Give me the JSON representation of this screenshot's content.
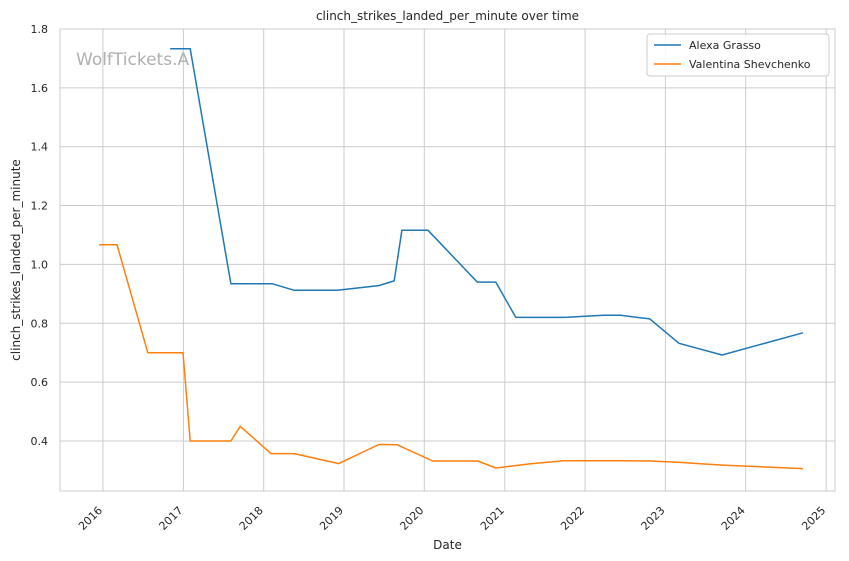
{
  "watermark": "WolfTickets.A",
  "colors": {
    "grid": "#cccccc",
    "axes_edge": "#cccccc",
    "text": "#262626",
    "background": "#ffffff"
  },
  "chart_data": {
    "type": "line",
    "title": "clinch_strikes_landed_per_minute over time",
    "xlabel": "Date",
    "ylabel": "clinch_strikes_landed_per_minute",
    "xlim": [
      "2015-06-20",
      "2025-02-10"
    ],
    "ylim": [
      0.23,
      1.8
    ],
    "x_ticks": [
      "2016",
      "2017",
      "2018",
      "2019",
      "2020",
      "2021",
      "2022",
      "2023",
      "2024",
      "2025"
    ],
    "y_ticks": [
      0.4,
      0.6,
      0.8,
      1.0,
      1.2,
      1.4,
      1.6,
      1.8
    ],
    "grid": true,
    "legend_position": "top-right",
    "series": [
      {
        "name": "Alexa Grasso",
        "color": "#1f77b4",
        "points": [
          [
            "2016-11-05",
            1.733
          ],
          [
            "2017-02-01",
            1.733
          ],
          [
            "2017-08-05",
            0.934
          ],
          [
            "2018-02-10",
            0.934
          ],
          [
            "2018-05-20",
            0.912
          ],
          [
            "2018-12-01",
            0.912
          ],
          [
            "2019-06-08",
            0.928
          ],
          [
            "2019-08-17",
            0.944
          ],
          [
            "2019-09-21",
            1.116
          ],
          [
            "2020-01-18",
            1.116
          ],
          [
            "2020-08-29",
            0.94
          ],
          [
            "2020-11-21",
            0.94
          ],
          [
            "2021-02-20",
            0.82
          ],
          [
            "2021-10-02",
            0.82
          ],
          [
            "2022-03-26",
            0.827
          ],
          [
            "2022-06-11",
            0.827
          ],
          [
            "2022-10-22",
            0.815
          ],
          [
            "2023-03-04",
            0.732
          ],
          [
            "2023-09-16",
            0.692
          ],
          [
            "2024-09-14",
            0.767
          ]
        ]
      },
      {
        "name": "Valentina Shevchenko",
        "color": "#ff7f0e",
        "points": [
          [
            "2015-12-19",
            1.067
          ],
          [
            "2016-03-05",
            1.067
          ],
          [
            "2016-07-23",
            0.7
          ],
          [
            "2016-12-30",
            0.7
          ],
          [
            "2017-02-01",
            0.4
          ],
          [
            "2017-08-05",
            0.4
          ],
          [
            "2017-09-16",
            0.45
          ],
          [
            "2018-02-03",
            0.357
          ],
          [
            "2018-05-19",
            0.357
          ],
          [
            "2018-12-08",
            0.323
          ],
          [
            "2019-06-08",
            0.388
          ],
          [
            "2019-08-31",
            0.387
          ],
          [
            "2020-02-08",
            0.332
          ],
          [
            "2020-08-31",
            0.332
          ],
          [
            "2020-11-21",
            0.308
          ],
          [
            "2021-04-24",
            0.322
          ],
          [
            "2021-09-25",
            0.333
          ],
          [
            "2022-06-11",
            0.333
          ],
          [
            "2022-10-22",
            0.332
          ],
          [
            "2023-02-25",
            0.328
          ],
          [
            "2023-09-16",
            0.318
          ],
          [
            "2024-09-14",
            0.306
          ]
        ]
      }
    ]
  }
}
